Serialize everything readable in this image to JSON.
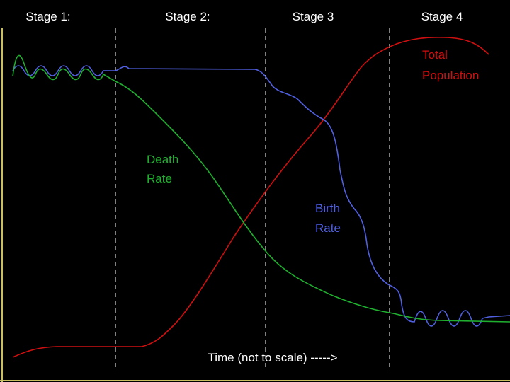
{
  "stages": [
    "Stage 1:",
    "Stage 2:",
    "Stage 3",
    "Stage 4"
  ],
  "curves": {
    "death_rate": [
      "Death",
      "Rate"
    ],
    "birth_rate": [
      "Birth",
      "Rate"
    ],
    "total_population": [
      "Total",
      "Population"
    ]
  },
  "x_axis_label": "Time (not to scale) ----->"
}
